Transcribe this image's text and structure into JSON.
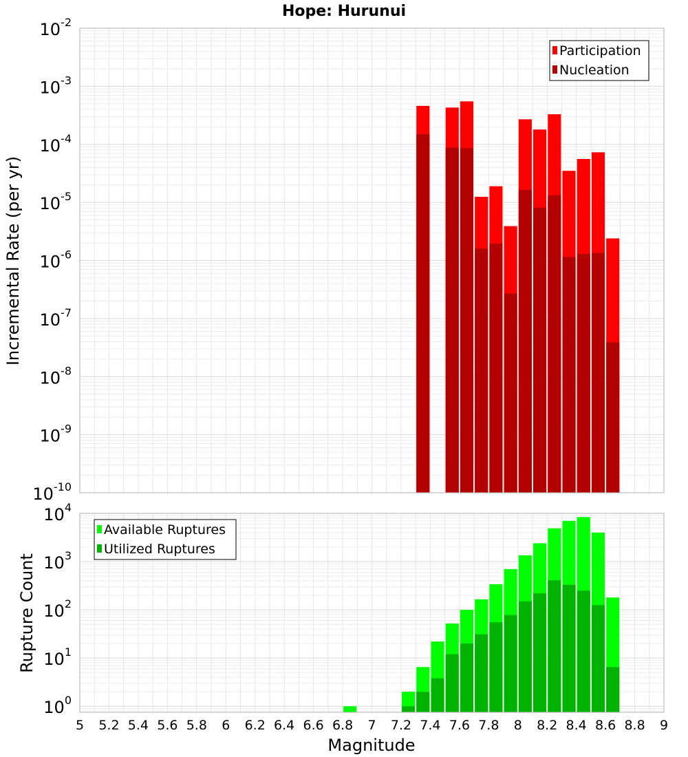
{
  "chart_data": [
    {
      "type": "bar",
      "title": "Hope: Hurunui",
      "xlabel": "",
      "ylabel": "Incremental Rate (per yr)",
      "y_scale": "log",
      "ylim": [
        1e-10,
        0.01
      ],
      "xlim": [
        5,
        9
      ],
      "y_ticks": [
        {
          "base": "10",
          "exp": "-10"
        },
        {
          "base": "10",
          "exp": "-9"
        },
        {
          "base": "10",
          "exp": "-8"
        },
        {
          "base": "10",
          "exp": "-7"
        },
        {
          "base": "10",
          "exp": "-6"
        },
        {
          "base": "10",
          "exp": "-5"
        },
        {
          "base": "10",
          "exp": "-4"
        },
        {
          "base": "10",
          "exp": "-3"
        },
        {
          "base": "10",
          "exp": "-2"
        }
      ],
      "grid": true,
      "legend_position": "top-right",
      "bar_width": 0.09,
      "series": [
        {
          "name": "Participation",
          "color": "#ff0000",
          "points": [
            {
              "x": 7.35,
              "y": 0.00046
            },
            {
              "x": 7.55,
              "y": 0.00043
            },
            {
              "x": 7.65,
              "y": 0.00055
            },
            {
              "x": 7.75,
              "y": 1.25e-05
            },
            {
              "x": 7.85,
              "y": 1.9e-05
            },
            {
              "x": 7.95,
              "y": 3.9e-06
            },
            {
              "x": 8.05,
              "y": 0.00027
            },
            {
              "x": 8.15,
              "y": 0.00018
            },
            {
              "x": 8.25,
              "y": 0.00033
            },
            {
              "x": 8.35,
              "y": 3.5e-05
            },
            {
              "x": 8.45,
              "y": 5.6e-05
            },
            {
              "x": 8.55,
              "y": 7.3e-05
            },
            {
              "x": 8.65,
              "y": 2.4e-06
            }
          ]
        },
        {
          "name": "Nucleation",
          "color": "#b30000",
          "points": [
            {
              "x": 7.35,
              "y": 0.00015
            },
            {
              "x": 7.55,
              "y": 8.8e-05
            },
            {
              "x": 7.65,
              "y": 8.6e-05
            },
            {
              "x": 7.75,
              "y": 1.6e-06
            },
            {
              "x": 7.85,
              "y": 1.95e-06
            },
            {
              "x": 7.95,
              "y": 2.7e-07
            },
            {
              "x": 8.05,
              "y": 1.65e-05
            },
            {
              "x": 8.15,
              "y": 8.1e-06
            },
            {
              "x": 8.25,
              "y": 1.33e-05
            },
            {
              "x": 8.35,
              "y": 1.15e-06
            },
            {
              "x": 8.45,
              "y": 1.3e-06
            },
            {
              "x": 8.55,
              "y": 1.35e-06
            },
            {
              "x": 8.65,
              "y": 3.9e-08
            }
          ]
        }
      ]
    },
    {
      "type": "bar",
      "title": "",
      "xlabel": "Magnitude",
      "ylabel": "Rupture Count",
      "y_scale": "log",
      "ylim": [
        0.75,
        10000
      ],
      "xlim": [
        5,
        9
      ],
      "y_ticks": [
        {
          "base": "10",
          "exp": "0"
        },
        {
          "base": "10",
          "exp": "1"
        },
        {
          "base": "10",
          "exp": "2"
        },
        {
          "base": "10",
          "exp": "3"
        },
        {
          "base": "10",
          "exp": "4"
        }
      ],
      "x_ticks": [
        "5",
        "5.2",
        "5.4",
        "5.6",
        "5.8",
        "6",
        "6.2",
        "6.4",
        "6.6",
        "6.8",
        "7",
        "7.2",
        "7.4",
        "7.6",
        "7.8",
        "8",
        "8.2",
        "8.4",
        "8.6",
        "8.8",
        "9"
      ],
      "grid": true,
      "legend_position": "top-left",
      "bar_width": 0.09,
      "series": [
        {
          "name": "Available Ruptures",
          "color": "#00ff00",
          "points": [
            {
              "x": 6.85,
              "y": 1
            },
            {
              "x": 7.25,
              "y": 2
            },
            {
              "x": 7.35,
              "y": 6.5
            },
            {
              "x": 7.45,
              "y": 22
            },
            {
              "x": 7.55,
              "y": 52
            },
            {
              "x": 7.65,
              "y": 100
            },
            {
              "x": 7.75,
              "y": 165
            },
            {
              "x": 7.85,
              "y": 340
            },
            {
              "x": 7.95,
              "y": 700
            },
            {
              "x": 8.05,
              "y": 1350
            },
            {
              "x": 8.15,
              "y": 2400
            },
            {
              "x": 8.25,
              "y": 4900
            },
            {
              "x": 8.35,
              "y": 7000
            },
            {
              "x": 8.45,
              "y": 8400
            },
            {
              "x": 8.55,
              "y": 4000
            },
            {
              "x": 8.65,
              "y": 180
            }
          ]
        },
        {
          "name": "Utilized Ruptures",
          "color": "#00b300",
          "points": [
            {
              "x": 7.25,
              "y": 1
            },
            {
              "x": 7.35,
              "y": 2
            },
            {
              "x": 7.45,
              "y": 3.8
            },
            {
              "x": 7.55,
              "y": 12
            },
            {
              "x": 7.65,
              "y": 20
            },
            {
              "x": 7.75,
              "y": 31
            },
            {
              "x": 7.85,
              "y": 55
            },
            {
              "x": 7.95,
              "y": 78
            },
            {
              "x": 8.05,
              "y": 150
            },
            {
              "x": 8.15,
              "y": 220
            },
            {
              "x": 8.25,
              "y": 410
            },
            {
              "x": 8.35,
              "y": 330
            },
            {
              "x": 8.45,
              "y": 250
            },
            {
              "x": 8.55,
              "y": 125
            },
            {
              "x": 8.65,
              "y": 6.5
            }
          ]
        }
      ]
    }
  ]
}
